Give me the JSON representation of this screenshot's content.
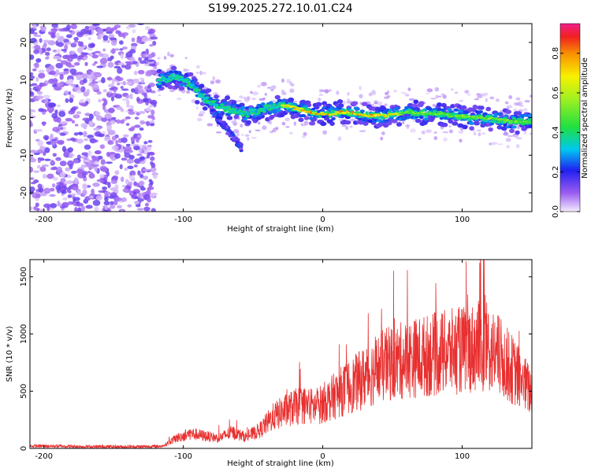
{
  "title": "S199.2025.272.10.01.C24",
  "chart_data": [
    {
      "type": "heatmap",
      "xlabel": "Height of straight line (km)",
      "ylabel": "Frequency (Hz)",
      "xlim": [
        -210,
        150
      ],
      "ylim": [
        -25,
        25
      ],
      "x_ticks": [
        -200,
        -100,
        0,
        100
      ],
      "y_ticks": [
        -20,
        -10,
        0,
        10,
        20
      ],
      "colorbar": {
        "label": "Normalized spectral amplitude",
        "range": [
          0,
          0.95
        ],
        "ticks": [
          0.0,
          0.2,
          0.4,
          0.6,
          0.8
        ]
      },
      "ridge": {
        "description_points_x": [
          -115,
          -105,
          -95,
          -85,
          -75,
          -65,
          -55,
          -45,
          -35,
          -25,
          -15,
          -5,
          5,
          15,
          25,
          35,
          45,
          55,
          65,
          75,
          85,
          95,
          105,
          115,
          125,
          135,
          145,
          150
        ],
        "frequency_hz": [
          10,
          11,
          9,
          5,
          3,
          2,
          1,
          2,
          3,
          3,
          2,
          1,
          1,
          1.5,
          1,
          0.5,
          0.5,
          1,
          1.5,
          1,
          1,
          0.5,
          0,
          0,
          -0.5,
          -1,
          -1,
          -1
        ]
      }
    },
    {
      "type": "line",
      "xlabel": "Height of straight line (km)",
      "ylabel": "SNR (10 * v/v)",
      "xlim": [
        -210,
        150
      ],
      "ylim": [
        0,
        1650
      ],
      "x_ticks": [
        -200,
        -100,
        0,
        100
      ],
      "y_ticks": [
        0,
        500,
        1000,
        1500
      ],
      "color": "#e83030",
      "envelope": {
        "x": [
          -210,
          -190,
          -170,
          -150,
          -130,
          -115,
          -105,
          -95,
          -85,
          -75,
          -65,
          -55,
          -45,
          -35,
          -25,
          -15,
          -5,
          5,
          15,
          25,
          35,
          45,
          55,
          65,
          75,
          85,
          95,
          105,
          115,
          125,
          135,
          145,
          150
        ],
        "y": [
          20,
          20,
          15,
          15,
          15,
          20,
          90,
          130,
          110,
          90,
          140,
          100,
          160,
          280,
          340,
          380,
          360,
          430,
          510,
          580,
          660,
          730,
          760,
          790,
          810,
          830,
          850,
          870,
          900,
          820,
          700,
          560,
          480
        ]
      }
    }
  ]
}
